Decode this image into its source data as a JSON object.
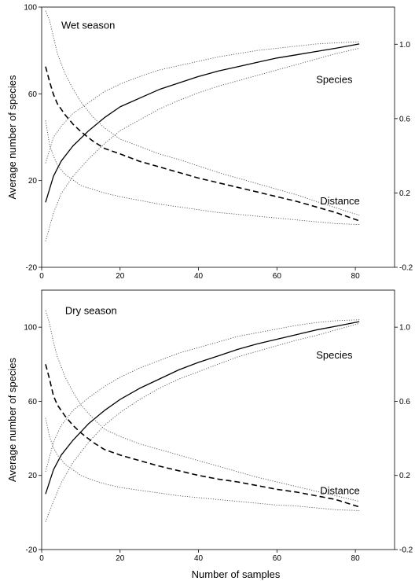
{
  "figure": {
    "xlabel": "Number of samples"
  },
  "chart_data": [
    {
      "type": "line",
      "ylabel": "Average number of species",
      "y2label": "",
      "xlim": [
        0,
        90
      ],
      "ylim": [
        -20,
        100
      ],
      "y2lim": [
        -0.2,
        1.2
      ],
      "xticks": [
        0,
        20,
        40,
        60,
        80
      ],
      "yticks": [
        -20,
        20,
        60,
        100
      ],
      "y2ticks": [
        -0.2,
        0.2,
        0.6,
        1.0
      ],
      "xtick_labels": [
        "0",
        "20",
        "40",
        "60",
        "80"
      ],
      "ytick_labels": [
        "-20",
        "20",
        "60",
        "100"
      ],
      "y2tick_labels": [
        "-0.2",
        "0.2",
        "0.6",
        "1.0"
      ],
      "grid": false,
      "annotations": [
        {
          "text": "Wet season",
          "x": 5,
          "y": 90
        },
        {
          "text": "Species",
          "x": 70,
          "y": 65
        },
        {
          "text": "Distance",
          "x": 71,
          "y": 9
        }
      ],
      "series": [
        {
          "axis": "left",
          "style": "solid",
          "x": [
            1,
            3,
            5,
            8,
            12,
            16,
            20,
            25,
            30,
            35,
            40,
            45,
            50,
            55,
            60,
            65,
            70,
            75,
            81
          ],
          "y": [
            10,
            22,
            29,
            36,
            43,
            49,
            54,
            58,
            62,
            65,
            68,
            70.5,
            72.5,
            74.5,
            76.5,
            78,
            79.5,
            81,
            83
          ]
        },
        {
          "axis": "left",
          "style": "dotted",
          "x": [
            1,
            3,
            5,
            8,
            12,
            16,
            20,
            25,
            30,
            35,
            40,
            45,
            50,
            55,
            60,
            65,
            70,
            75,
            81
          ],
          "y": [
            -8,
            5,
            14,
            22,
            30,
            37,
            43,
            48,
            53,
            57,
            60.5,
            63.5,
            66,
            68.5,
            71,
            73.5,
            76,
            78.5,
            81
          ]
        },
        {
          "axis": "left",
          "style": "dotted",
          "x": [
            1,
            3,
            5,
            8,
            12,
            16,
            20,
            25,
            30,
            35,
            40,
            45,
            50,
            55,
            60,
            65,
            70,
            75,
            81
          ],
          "y": [
            28,
            40,
            45,
            51,
            56,
            61,
            64.5,
            68,
            71,
            73,
            75,
            77,
            78.5,
            80,
            81,
            82,
            83,
            83.5,
            84
          ]
        },
        {
          "axis": "right",
          "style": "dashed",
          "x": [
            1,
            2,
            3,
            4,
            6,
            8,
            10,
            13,
            16,
            20,
            25,
            30,
            35,
            40,
            45,
            50,
            55,
            60,
            65,
            70,
            75,
            81
          ],
          "y": [
            0.88,
            0.8,
            0.73,
            0.68,
            0.62,
            0.57,
            0.53,
            0.48,
            0.44,
            0.41,
            0.37,
            0.34,
            0.31,
            0.28,
            0.255,
            0.23,
            0.205,
            0.18,
            0.155,
            0.125,
            0.095,
            0.05
          ]
        },
        {
          "axis": "right",
          "style": "dotted",
          "x": [
            1,
            2,
            3,
            4,
            6,
            8,
            10,
            13,
            16,
            20,
            25,
            30,
            35,
            40,
            45,
            50,
            55,
            60,
            65,
            70,
            75,
            81
          ],
          "y": [
            1.18,
            1.13,
            1.04,
            0.95,
            0.84,
            0.76,
            0.69,
            0.61,
            0.55,
            0.49,
            0.45,
            0.41,
            0.38,
            0.345,
            0.31,
            0.28,
            0.25,
            0.22,
            0.19,
            0.155,
            0.12,
            0.08
          ]
        },
        {
          "axis": "right",
          "style": "dotted",
          "x": [
            1,
            2,
            3,
            4,
            6,
            8,
            10,
            13,
            16,
            20,
            25,
            30,
            35,
            40,
            45,
            50,
            55,
            60,
            65,
            70,
            75,
            81
          ],
          "y": [
            0.59,
            0.46,
            0.4,
            0.35,
            0.3,
            0.27,
            0.24,
            0.22,
            0.2,
            0.18,
            0.16,
            0.14,
            0.125,
            0.11,
            0.095,
            0.085,
            0.075,
            0.065,
            0.055,
            0.045,
            0.035,
            0.03
          ]
        }
      ]
    },
    {
      "type": "line",
      "ylabel": "Average number of species",
      "y2label": "",
      "xlim": [
        0,
        90
      ],
      "ylim": [
        -20,
        120
      ],
      "y2lim": [
        -0.2,
        1.2
      ],
      "xticks": [
        0,
        20,
        40,
        60,
        80
      ],
      "yticks": [
        -20,
        20,
        60,
        100
      ],
      "y2ticks": [
        -0.2,
        0.2,
        0.6,
        1.0
      ],
      "xtick_labels": [
        "0",
        "20",
        "40",
        "60",
        "80"
      ],
      "ytick_labels": [
        "-20",
        "20",
        "60",
        "100"
      ],
      "y2tick_labels": [
        "-0.2",
        "0.2",
        "0.6",
        "1.0"
      ],
      "grid": false,
      "annotations": [
        {
          "text": "Dry season",
          "x": 6,
          "y": 107
        },
        {
          "text": "Species",
          "x": 70,
          "y": 83
        },
        {
          "text": "Distance",
          "x": 71,
          "y": 10
        }
      ],
      "series": [
        {
          "axis": "left",
          "style": "solid",
          "x": [
            1,
            3,
            5,
            8,
            12,
            16,
            20,
            25,
            30,
            35,
            40,
            45,
            50,
            55,
            60,
            65,
            70,
            75,
            81
          ],
          "y": [
            10,
            23,
            31,
            39,
            48,
            55,
            61,
            67,
            72,
            77,
            81,
            84.5,
            88,
            91,
            93.5,
            96,
            98.5,
            100.5,
            103
          ]
        },
        {
          "axis": "left",
          "style": "dotted",
          "x": [
            1,
            3,
            5,
            8,
            12,
            16,
            20,
            25,
            30,
            35,
            40,
            45,
            50,
            55,
            60,
            65,
            70,
            75,
            81
          ],
          "y": [
            -5,
            6,
            16,
            27,
            38,
            47,
            54,
            61,
            67,
            72,
            76,
            80,
            84,
            87,
            90,
            93,
            95.5,
            98.5,
            102
          ]
        },
        {
          "axis": "left",
          "style": "dotted",
          "x": [
            1,
            3,
            5,
            8,
            12,
            16,
            20,
            25,
            30,
            35,
            40,
            45,
            50,
            55,
            60,
            65,
            70,
            75,
            81
          ],
          "y": [
            22,
            38,
            47,
            55,
            62,
            68,
            73,
            78,
            82,
            86,
            89,
            92,
            95,
            97,
            99,
            101,
            102.5,
            103.5,
            104
          ]
        },
        {
          "axis": "right",
          "style": "dashed",
          "x": [
            1,
            2,
            3,
            4,
            6,
            8,
            10,
            13,
            16,
            20,
            25,
            30,
            35,
            40,
            45,
            50,
            55,
            60,
            65,
            70,
            75,
            81
          ],
          "y": [
            0.8,
            0.72,
            0.63,
            0.58,
            0.52,
            0.47,
            0.43,
            0.38,
            0.34,
            0.31,
            0.28,
            0.25,
            0.225,
            0.2,
            0.18,
            0.165,
            0.145,
            0.125,
            0.11,
            0.09,
            0.07,
            0.03
          ]
        },
        {
          "axis": "right",
          "style": "dotted",
          "x": [
            1,
            2,
            3,
            4,
            6,
            8,
            10,
            13,
            16,
            20,
            25,
            30,
            35,
            40,
            45,
            50,
            55,
            60,
            65,
            70,
            75,
            81
          ],
          "y": [
            1.09,
            1.02,
            0.92,
            0.84,
            0.73,
            0.65,
            0.58,
            0.51,
            0.45,
            0.41,
            0.37,
            0.34,
            0.31,
            0.28,
            0.25,
            0.22,
            0.19,
            0.165,
            0.14,
            0.115,
            0.09,
            0.06
          ]
        },
        {
          "axis": "right",
          "style": "dotted",
          "x": [
            1,
            2,
            3,
            4,
            6,
            8,
            10,
            13,
            16,
            20,
            25,
            30,
            35,
            40,
            45,
            50,
            55,
            60,
            65,
            70,
            75,
            81
          ],
          "y": [
            0.51,
            0.41,
            0.35,
            0.31,
            0.26,
            0.23,
            0.2,
            0.175,
            0.155,
            0.135,
            0.12,
            0.105,
            0.09,
            0.08,
            0.07,
            0.06,
            0.05,
            0.04,
            0.035,
            0.025,
            0.015,
            0.01
          ]
        }
      ]
    }
  ]
}
